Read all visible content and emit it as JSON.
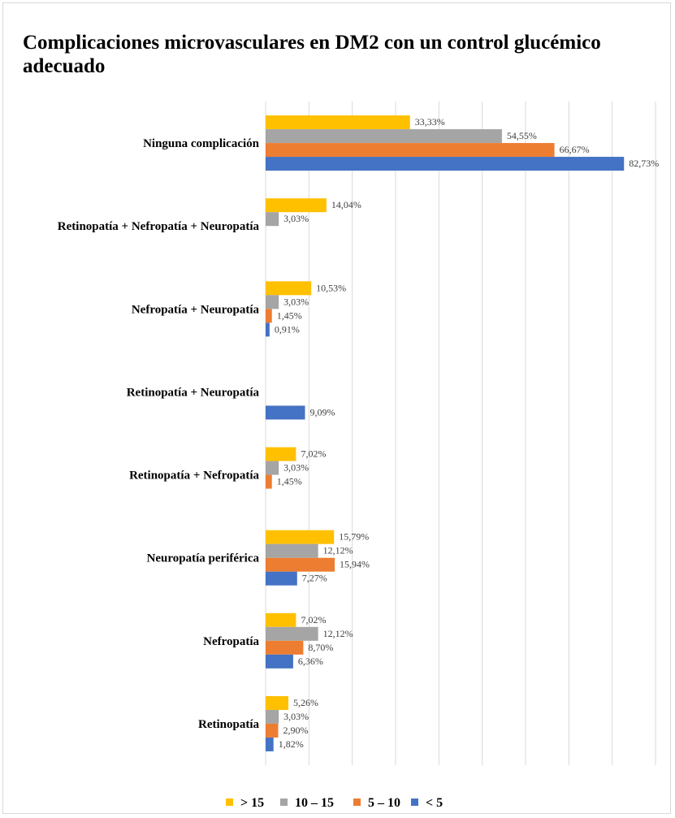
{
  "chart_data": {
    "type": "bar",
    "orientation": "horizontal",
    "title": "Complicaciones microvasculares en DM2 con un control glucémico adecuado",
    "categories": [
      "Ninguna complicación",
      "Retinopatía + Nefropatía + Neuropatía",
      "Nefropatía + Neuropatía",
      "Retinopatía + Neuropatía",
      "Retinopatía + Nefropatía",
      "Neuropatía periférica",
      "Nefropatía",
      "Retinopatía"
    ],
    "series": [
      {
        "name": "> 15",
        "color": "#ffc000",
        "values": [
          33.33,
          14.04,
          10.53,
          null,
          7.02,
          15.79,
          7.02,
          5.26
        ],
        "labels": [
          "33,33%",
          "14,04%",
          "10,53%",
          null,
          "7,02%",
          "15,79%",
          "7,02%",
          "5,26%"
        ]
      },
      {
        "name": "10 – 15",
        "color": "#a5a5a5",
        "values": [
          54.55,
          3.03,
          3.03,
          null,
          3.03,
          12.12,
          12.12,
          3.03
        ],
        "labels": [
          "54,55%",
          "3,03%",
          "3,03%",
          null,
          "3,03%",
          "12,12%",
          "12,12%",
          "3,03%"
        ]
      },
      {
        "name": "5 – 10",
        "color": "#ed7d31",
        "values": [
          66.67,
          null,
          1.45,
          null,
          1.45,
          15.94,
          8.7,
          2.9
        ],
        "labels": [
          "66,67%",
          null,
          "1,45%",
          null,
          "1,45%",
          "15,94%",
          "8,70%",
          "2,90%"
        ]
      },
      {
        "name": "< 5",
        "color": "#4472c4",
        "values": [
          82.73,
          null,
          0.91,
          9.09,
          null,
          7.27,
          6.36,
          1.82
        ],
        "labels": [
          "82,73%",
          null,
          "0,91%",
          "9,09%",
          null,
          "7,27%",
          "6,36%",
          "1,82%"
        ]
      }
    ],
    "xlim": [
      0,
      90
    ],
    "grid": true,
    "legend_position": "bottom",
    "xlabel": "",
    "ylabel": ""
  }
}
